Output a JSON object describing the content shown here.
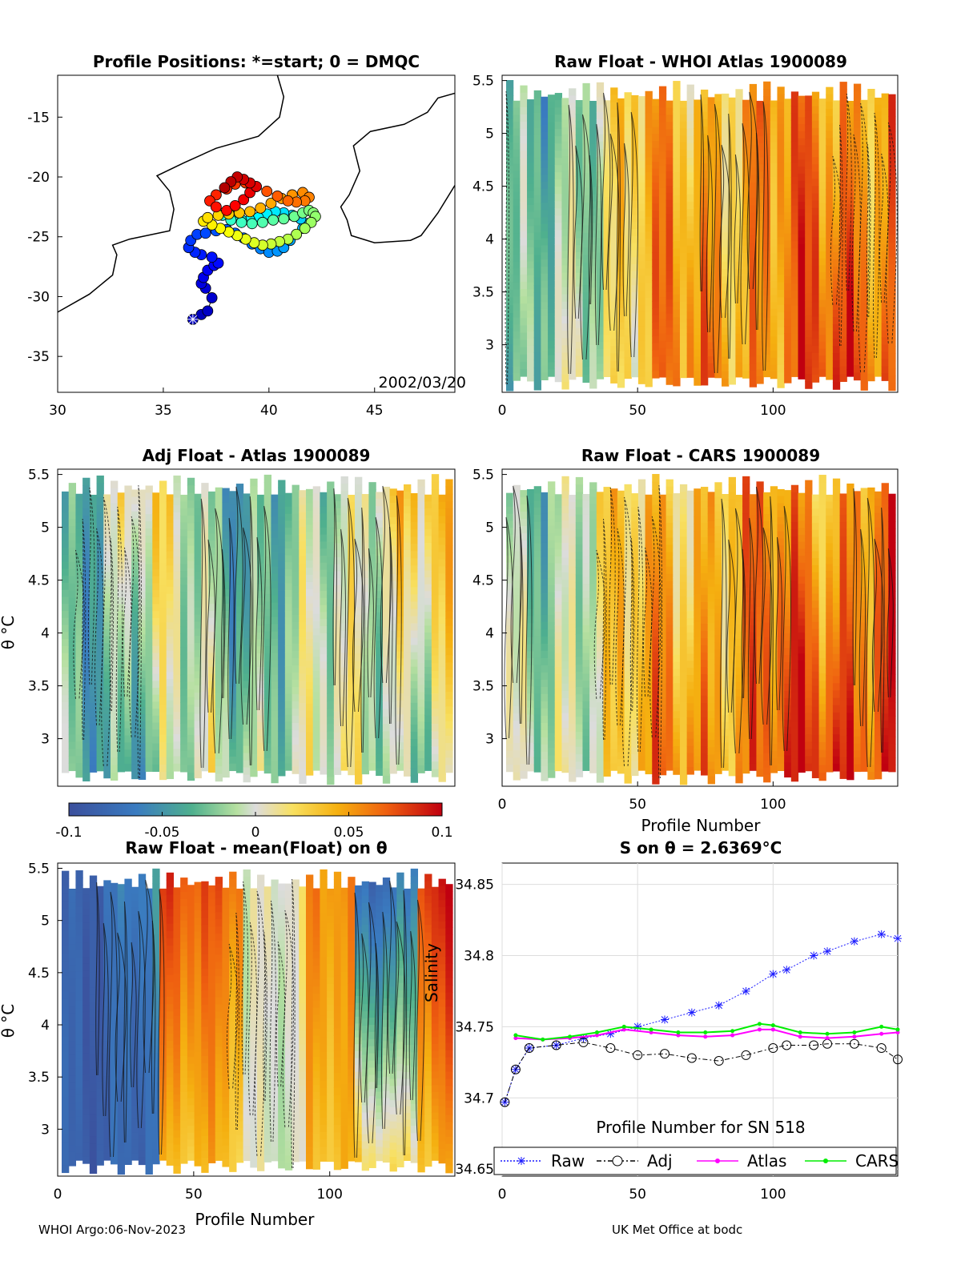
{
  "figure": {
    "footer_left": "WHOI Argo:06-Nov-2023",
    "footer_right": "UK Met Office at bodc",
    "float_id": "1900089"
  },
  "chart_data": [
    {
      "type": "scatter",
      "title": "Profile Positions: *=start; 0 = DMQC",
      "xlim": [
        30,
        48.8
      ],
      "ylim": [
        -38,
        -11.5
      ],
      "xticks": [
        30,
        35,
        40,
        45
      ],
      "yticks": [
        -15,
        -20,
        -25,
        -30,
        -35
      ],
      "annotation": "2002/03/20",
      "track_lon": [
        36.4,
        36.8,
        37.1,
        37.3,
        37.0,
        36.8,
        36.9,
        37.1,
        37.4,
        37.6,
        37.3,
        36.8,
        36.5,
        36.2,
        36.3,
        36.6,
        37.0,
        37.5,
        38.0,
        38.4,
        38.8,
        39.2,
        39.6,
        40.0,
        40.4,
        40.7,
        41.0,
        41.3,
        41.6,
        41.8,
        41.5,
        41.1,
        40.7,
        40.3,
        39.9,
        39.5,
        39.1,
        38.7,
        38.3,
        38.0,
        37.8,
        38.2,
        38.7,
        39.2,
        39.7,
        40.2,
        40.7,
        41.2,
        41.6,
        41.9,
        42.1,
        42.2,
        42.0,
        41.7,
        41.3,
        40.9,
        40.5,
        40.1,
        39.7,
        39.3,
        38.9,
        38.5,
        38.1,
        37.7,
        37.3,
        36.9,
        37.1,
        37.6,
        38.1,
        38.6,
        39.1,
        39.6,
        40.1,
        40.6,
        41.1,
        41.6,
        41.9,
        41.7,
        41.3,
        40.9,
        40.4,
        39.9,
        39.4,
        38.9,
        38.4,
        38.0,
        37.5,
        37.2,
        37.5,
        38.0,
        38.4,
        38.8,
        39.1,
        39.4,
        39.1,
        38.8,
        38.5,
        38.2,
        37.9
      ],
      "track_lat": [
        -31.9,
        -31.5,
        -31.2,
        -30.1,
        -29.3,
        -28.9,
        -28.4,
        -27.8,
        -27.4,
        -27.2,
        -26.7,
        -26.5,
        -26.3,
        -25.9,
        -25.3,
        -24.8,
        -24.7,
        -24.5,
        -24.4,
        -24.7,
        -25.1,
        -25.6,
        -26.0,
        -26.3,
        -26.2,
        -25.9,
        -25.3,
        -24.8,
        -24.3,
        -23.9,
        -23.5,
        -23.2,
        -23.0,
        -22.9,
        -23.1,
        -23.4,
        -23.6,
        -23.6,
        -23.3,
        -23.0,
        -23.2,
        -23.6,
        -23.8,
        -23.9,
        -23.8,
        -23.6,
        -23.5,
        -23.3,
        -23.0,
        -22.8,
        -23.0,
        -23.3,
        -23.8,
        -24.3,
        -24.8,
        -25.2,
        -25.4,
        -25.6,
        -25.7,
        -25.5,
        -25.2,
        -24.9,
        -24.6,
        -24.3,
        -24.0,
        -23.7,
        -23.4,
        -23.2,
        -23.1,
        -23.0,
        -22.9,
        -22.6,
        -22.2,
        -21.8,
        -21.5,
        -21.3,
        -21.7,
        -22.0,
        -22.1,
        -22.0,
        -21.6,
        -21.2,
        -20.8,
        -20.5,
        -20.6,
        -21.0,
        -21.5,
        -22.0,
        -22.5,
        -22.8,
        -22.4,
        -21.9,
        -21.3,
        -20.8,
        -20.5,
        -20.2,
        -20.0,
        -20.4,
        -20.9
      ]
    },
    {
      "type": "heatmap",
      "title": "Raw Float - WHOI Atlas  1900089",
      "xlim": [
        0,
        146
      ],
      "ylim": [
        2.55,
        5.55
      ],
      "xticks": [
        0,
        50,
        100
      ],
      "yticks": [
        3,
        3.5,
        4,
        4.5,
        5,
        5.5
      ],
      "xlabel": "",
      "ylabel": "",
      "variant": 0
    },
    {
      "type": "heatmap",
      "title": "Adj Float - Atlas  1900089",
      "xlim": [
        0,
        146
      ],
      "ylim": [
        2.55,
        5.55
      ],
      "xticks": [],
      "yticks": [
        3,
        3.5,
        4,
        4.5,
        5,
        5.5
      ],
      "xlabel": "",
      "ylabel": "θ °C",
      "variant": 1
    },
    {
      "type": "heatmap",
      "title": "Raw Float - CARS  1900089",
      "xlim": [
        0,
        146
      ],
      "ylim": [
        2.55,
        5.55
      ],
      "xticks": [
        0,
        50,
        100
      ],
      "yticks": [
        3,
        3.5,
        4,
        4.5,
        5,
        5.5
      ],
      "xlabel": "Profile Number",
      "ylabel": "",
      "variant": 2
    },
    {
      "type": "colorbar",
      "clim": [
        -0.1,
        0.1
      ],
      "ticks": [
        "-0.1",
        "-0.05",
        "0",
        "0.05",
        "0.1"
      ]
    },
    {
      "type": "heatmap",
      "title": "Raw Float - mean(Float) on θ",
      "xlim": [
        0,
        146
      ],
      "ylim": [
        2.55,
        5.55
      ],
      "xticks": [
        0,
        50,
        100
      ],
      "yticks": [
        3,
        3.5,
        4,
        4.5,
        5,
        5.5
      ],
      "xlabel": "Profile Number",
      "ylabel": "θ °C",
      "variant": 3
    },
    {
      "type": "line",
      "title": "S on θ = 2.6369°C",
      "xlabel": "Profile Number for SN 518",
      "ylabel": "Salinity",
      "xlim": [
        0,
        146
      ],
      "ylim": [
        34.645,
        34.865
      ],
      "xticks": [
        0,
        50,
        100
      ],
      "yticks": [
        34.65,
        34.7,
        34.75,
        34.8,
        34.85
      ],
      "grid": true,
      "legend": [
        "Raw",
        "Adj",
        "Atlas",
        "CARS"
      ],
      "series": [
        {
          "name": "Raw",
          "color": "#1a1aff",
          "x": [
            1,
            5,
            10,
            20,
            30,
            40,
            50,
            60,
            70,
            80,
            90,
            100,
            105,
            115,
            120,
            130,
            140,
            146
          ],
          "y": [
            34.697,
            34.72,
            34.735,
            34.737,
            34.742,
            34.745,
            34.75,
            34.755,
            34.76,
            34.765,
            34.775,
            34.787,
            34.79,
            34.8,
            34.803,
            34.81,
            34.815,
            34.812
          ]
        },
        {
          "name": "Adj",
          "color": "#000000",
          "x": [
            1,
            5,
            10,
            20,
            30,
            40,
            50,
            60,
            70,
            80,
            90,
            100,
            105,
            115,
            120,
            130,
            140,
            146
          ],
          "y": [
            34.697,
            34.72,
            34.735,
            34.737,
            34.739,
            34.735,
            34.73,
            34.731,
            34.728,
            34.726,
            34.73,
            34.735,
            34.737,
            34.737,
            34.738,
            34.738,
            34.735,
            34.727
          ]
        },
        {
          "name": "Atlas",
          "color": "#ff00ff",
          "x": [
            5,
            15,
            25,
            35,
            45,
            55,
            65,
            75,
            85,
            95,
            100,
            110,
            120,
            130,
            140,
            146
          ],
          "y": [
            34.742,
            34.741,
            34.742,
            34.744,
            34.748,
            34.746,
            34.744,
            34.743,
            34.744,
            34.748,
            34.748,
            34.743,
            34.742,
            34.743,
            34.745,
            34.746
          ]
        },
        {
          "name": "CARS",
          "color": "#00ee00",
          "x": [
            5,
            15,
            25,
            35,
            45,
            55,
            65,
            75,
            85,
            95,
            100,
            110,
            120,
            130,
            140,
            146
          ],
          "y": [
            34.744,
            34.741,
            34.743,
            34.746,
            34.75,
            34.748,
            34.746,
            34.746,
            34.747,
            34.752,
            34.751,
            34.746,
            34.745,
            34.746,
            34.75,
            34.748
          ]
        }
      ]
    }
  ]
}
